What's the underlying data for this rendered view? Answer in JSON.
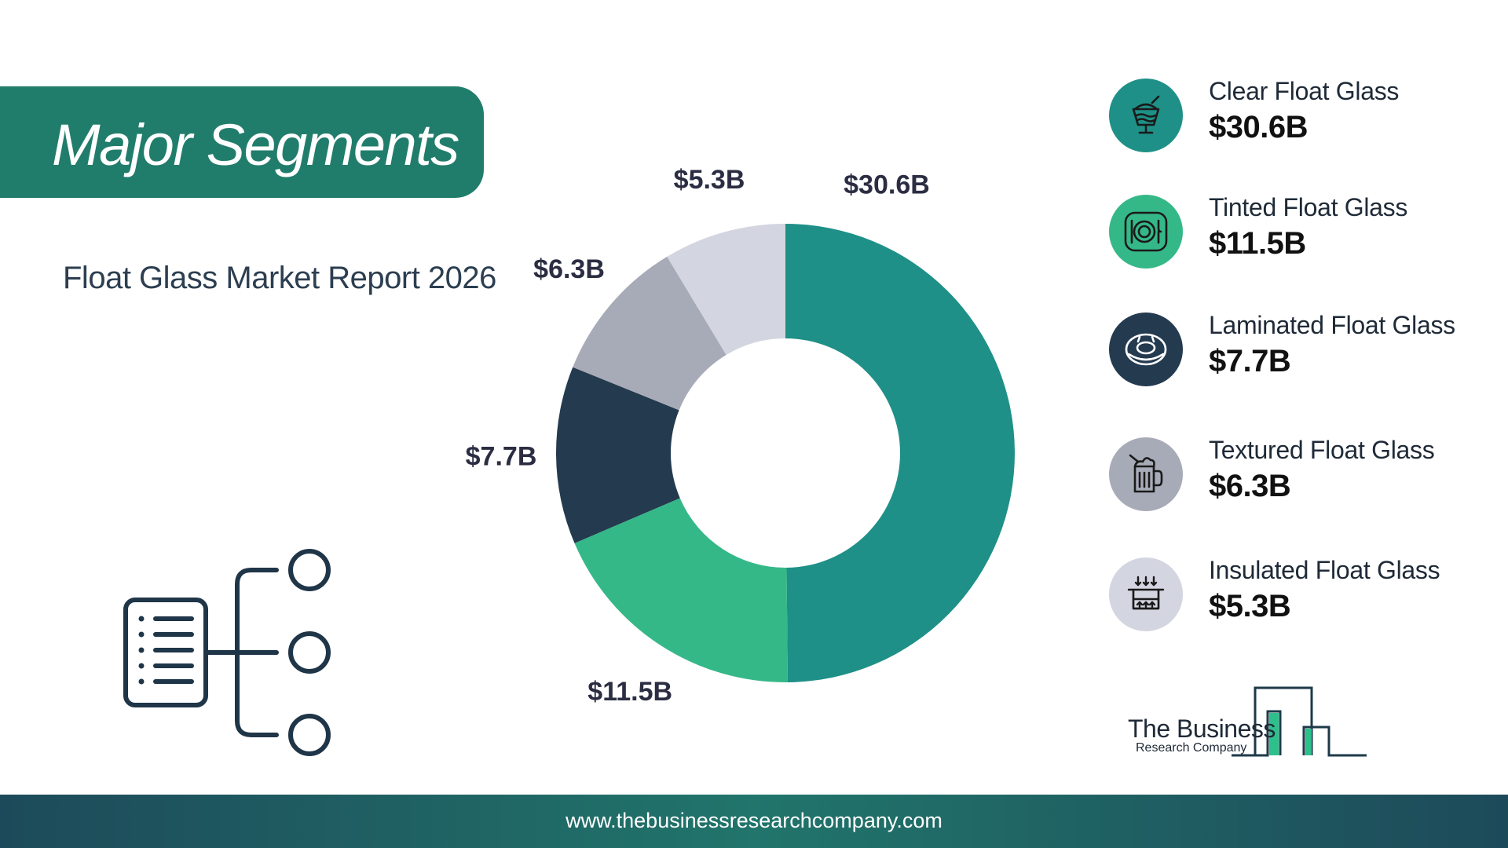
{
  "header": {
    "title": "Major Segments",
    "subtitle": "Float Glass Market Report 2026"
  },
  "chart_data": {
    "type": "donut",
    "title": "",
    "categories": [
      "Clear Float Glass",
      "Tinted Float Glass",
      "Laminated Float Glass",
      "Textured Float Glass",
      "Insulated Float Glass"
    ],
    "values": [
      30.6,
      11.5,
      7.7,
      6.3,
      5.3
    ],
    "labels": [
      "$30.6B",
      "$11.5B",
      "$7.7B",
      "$6.3B",
      "$5.3B"
    ],
    "colors": [
      "#1e9087",
      "#35b888",
      "#243a4f",
      "#a7abb7",
      "#d3d5e0"
    ],
    "start_angle_deg": 0,
    "direction": "clockwise",
    "unit": "$B"
  },
  "legend": [
    {
      "name": "Clear Float Glass",
      "value": "$30.6B",
      "color": "#1e9087",
      "icon": "sundae-glass-icon",
      "icon_color": "#1a1a1a"
    },
    {
      "name": "Tinted Float Glass",
      "value": "$11.5B",
      "color": "#35b888",
      "icon": "plate-cutlery-icon",
      "icon_color": "#1a1a1a"
    },
    {
      "name": "Laminated Float Glass",
      "value": "$7.7B",
      "color": "#243a4f",
      "icon": "donut-ring-icon",
      "icon_color": "#ffffff"
    },
    {
      "name": "Textured Float Glass",
      "value": "$6.3B",
      "color": "#a7abb7",
      "icon": "mug-drink-icon",
      "icon_color": "#1a1a1a"
    },
    {
      "name": "Insulated Float Glass",
      "value": "$5.3B",
      "color": "#d3d5e0",
      "icon": "insulation-box-icon",
      "icon_color": "#1a1a1a"
    }
  ],
  "logo": {
    "line1": "The Business",
    "line2": "Research Company",
    "accent_color": "#2ec08b",
    "dark_color": "#1e3a48"
  },
  "footer": {
    "url": "www.thebusinessresearchcompany.com"
  }
}
